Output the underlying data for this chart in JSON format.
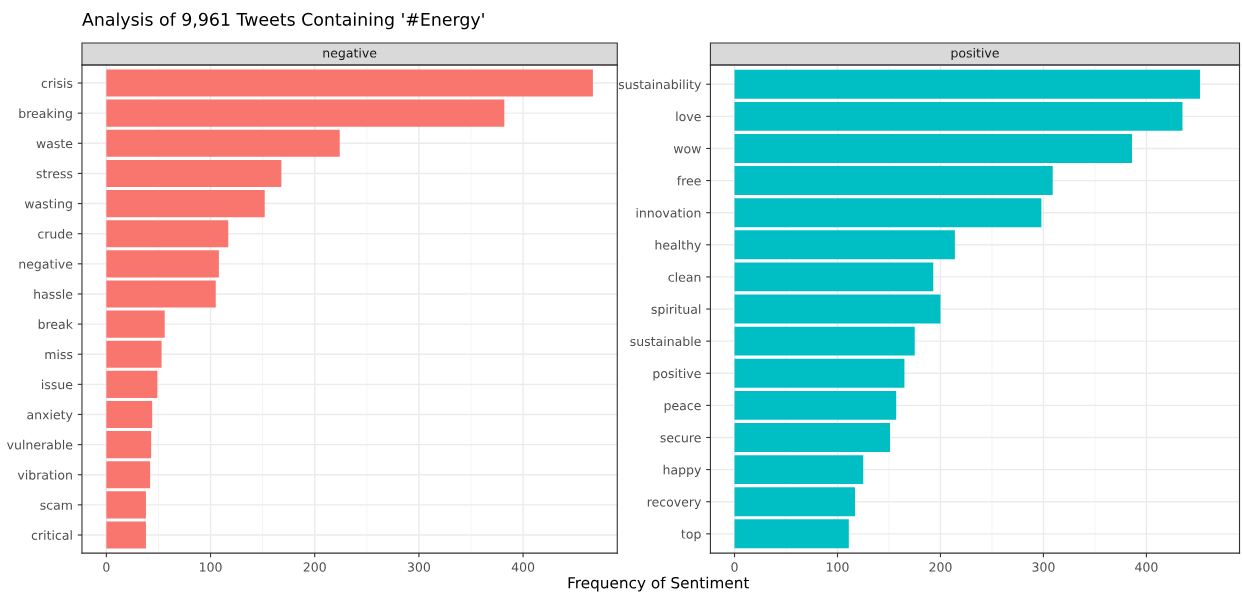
{
  "chart_data": [
    {
      "type": "bar",
      "orientation": "horizontal",
      "title": "Analysis of 9,961 Tweets Containing '#Energy'",
      "subtitle": "negative",
      "xlabel": "Frequency of Sentiment",
      "categories": [
        "crisis",
        "breaking",
        "waste",
        "stress",
        "wasting",
        "crude",
        "negative",
        "hassle",
        "break",
        "miss",
        "issue",
        "anxiety",
        "vulnerable",
        "vibration",
        "scam",
        "critical"
      ],
      "values": [
        467,
        382,
        224,
        168,
        152,
        117,
        108,
        105,
        56,
        53,
        49,
        44,
        43,
        42,
        38,
        38
      ],
      "color": "#f8766d",
      "xlim": [
        -23.4,
        490.4
      ],
      "xticks": [
        0,
        100,
        200,
        300,
        400
      ],
      "grid": true,
      "legend": false
    },
    {
      "type": "bar",
      "orientation": "horizontal",
      "subtitle": "positive",
      "categories": [
        "sustainability",
        "love",
        "wow",
        "free",
        "innovation",
        "healthy",
        "clean",
        "spiritual",
        "sustainable",
        "positive",
        "peace",
        "secure",
        "happy",
        "recovery",
        "top"
      ],
      "values": [
        452,
        435,
        386,
        309,
        298,
        214,
        193,
        200,
        175,
        165,
        157,
        151,
        125,
        117,
        111
      ],
      "color": "#00bfc4",
      "xlim": [
        -23.4,
        490.4
      ],
      "xticks": [
        0,
        100,
        200,
        300,
        400
      ],
      "grid": true,
      "legend": false
    }
  ]
}
